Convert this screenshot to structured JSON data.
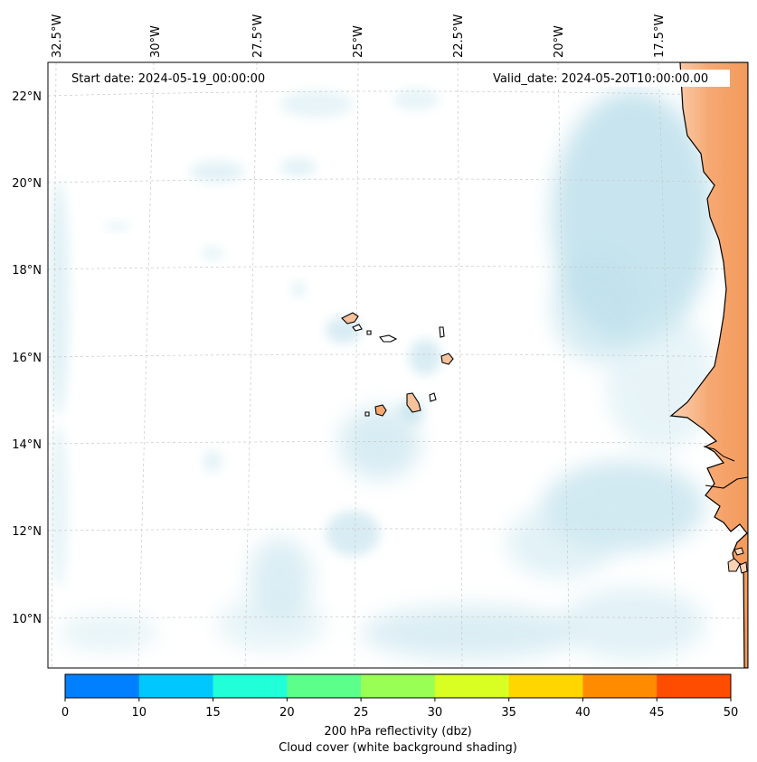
{
  "map": {
    "start_label": "Start date: 2024-05-19_00:00:00",
    "valid_label": "Valid_date: 2024-05-20T10:00:00.00",
    "lon_labels": [
      "32.5°W",
      "30°W",
      "27.5°W",
      "25°W",
      "22.5°W",
      "20°W",
      "17.5°W"
    ],
    "lat_labels": [
      "22°N",
      "20°N",
      "18°N",
      "16°N",
      "14°N",
      "12°N",
      "10°N"
    ],
    "colors": {
      "cloud": "#a9d6e5",
      "land": "#f6a06a",
      "coast": "#000000",
      "grid": "#c8c8c8"
    }
  },
  "colorbar": {
    "ticks": [
      "0",
      "10",
      "15",
      "20",
      "25",
      "30",
      "35",
      "40",
      "45",
      "50"
    ],
    "colors": [
      "#0080ff",
      "#00c8ff",
      "#21ffd8",
      "#5cff8a",
      "#99ff55",
      "#d8ff21",
      "#ffd600",
      "#ff8c00",
      "#ff4d00"
    ],
    "label_line1": "200 hPa reflectivity (dbz)",
    "label_line2": "Cloud cover (white background shading)"
  }
}
